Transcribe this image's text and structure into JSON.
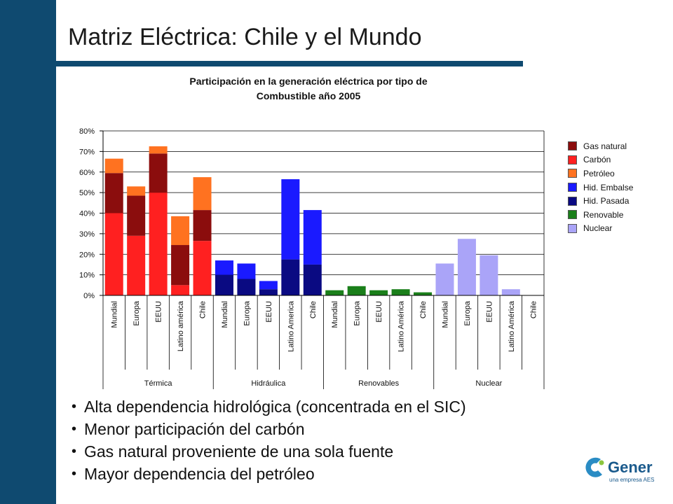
{
  "slide": {
    "title": "Matriz Eléctrica: Chile y el Mundo",
    "bullets": [
      "Alta dependencia hidrológica (concentrada en el SIC)",
      "Menor participación del carbón",
      "Gas natural proveniente de una sola fuente",
      "Mayor dependencia del petróleo"
    ]
  },
  "logo": {
    "name": "Gener",
    "tagline": "una empresa AES"
  },
  "colors": {
    "band": "#0f4a70"
  },
  "chart_data": {
    "type": "bar",
    "stacked": true,
    "title": "Participación en la generación eléctrica por tipo de Combustible año 2005",
    "title_lines": [
      "Participación en la generación eléctrica por tipo de",
      "Combustible año 2005"
    ],
    "ylim": [
      0,
      80
    ],
    "yticks": [
      0,
      10,
      20,
      30,
      40,
      50,
      60,
      70,
      80
    ],
    "ytick_labels": [
      "0%",
      "10%",
      "20%",
      "30%",
      "40%",
      "50%",
      "60%",
      "70%",
      "80%"
    ],
    "grid": true,
    "legend_position": "right",
    "groups": [
      "Térmica",
      "Hidráulica",
      "Renovables",
      "Nuclear"
    ],
    "categories": [
      "Mundial",
      "Europa",
      "EEUU",
      "Latino américa",
      "Chile",
      "Mundial",
      "Europa",
      "EEUU",
      "Latino America",
      "Chile",
      "Mundial",
      "Europa",
      "EEUU",
      "Latino América",
      "Chile",
      "Mundial",
      "Europa",
      "EEUU",
      "Latino América",
      "Chile"
    ],
    "series": [
      {
        "name": "Carbón",
        "color": "#ff2020",
        "values": [
          40,
          29,
          50,
          5,
          26.5,
          0,
          0,
          0,
          0,
          0,
          0,
          0,
          0,
          0,
          0,
          0,
          0,
          0,
          0,
          0
        ]
      },
      {
        "name": "Gas natural",
        "color": "#8b0d0d",
        "values": [
          19.5,
          19.5,
          19,
          19.5,
          15,
          0,
          0,
          0,
          0,
          0,
          0,
          0,
          0,
          0,
          0,
          0,
          0,
          0,
          0,
          0
        ]
      },
      {
        "name": "Petróleo",
        "color": "#ff7220",
        "values": [
          7,
          4.5,
          3.5,
          14,
          16,
          0,
          0,
          0,
          0,
          0,
          0,
          0,
          0,
          0,
          0,
          0,
          0,
          0,
          0,
          0
        ]
      },
      {
        "name": "Hid. Pasada",
        "color": "#0a0a82",
        "values": [
          0,
          0,
          0,
          0,
          0,
          10,
          8,
          3,
          17.5,
          15,
          0,
          0,
          0,
          0,
          0,
          0,
          0,
          0,
          0,
          0
        ]
      },
      {
        "name": "Hid. Embalse",
        "color": "#1a1aff",
        "values": [
          0,
          0,
          0,
          0,
          0,
          7,
          7.5,
          4,
          39,
          26.5,
          0,
          0,
          0,
          0,
          0,
          0,
          0,
          0,
          0,
          0
        ]
      },
      {
        "name": "Renovable",
        "color": "#1a7f1a",
        "values": [
          0,
          0,
          0,
          0,
          0,
          0,
          0,
          0,
          0,
          0,
          2.5,
          4.5,
          2.5,
          3,
          1.5,
          0,
          0,
          0,
          0,
          0
        ]
      },
      {
        "name": "Nuclear",
        "color": "#aaa4f8",
        "values": [
          0,
          0,
          0,
          0,
          0,
          0,
          0,
          0,
          0,
          0,
          0,
          0,
          0,
          0,
          0,
          15.5,
          27.5,
          19.5,
          3,
          0
        ]
      }
    ],
    "legend_order": [
      "Gas natural",
      "Carbón",
      "Petróleo",
      "Hid. Embalse",
      "Hid. Pasada",
      "Renovable",
      "Nuclear"
    ]
  }
}
